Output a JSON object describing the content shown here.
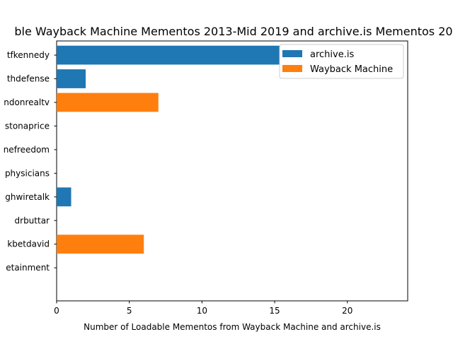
{
  "chart_data": {
    "type": "bar",
    "orientation": "horizontal",
    "title": "ble Wayback Machine Mementos 2013-Mid 2019 and archive.is Mementos 20",
    "xlabel": "Number of Loadable Mementos from Wayback Machine and archive.is",
    "ylabel": "",
    "xlim": [
      0,
      24.15
    ],
    "xticks": [
      0,
      5,
      10,
      15,
      20
    ],
    "categories": [
      "etainment",
      "kbetdavid",
      "drbuttar",
      "ghwiretalk",
      "physicians",
      "nefreedom",
      "stonaprice",
      "ndonrealtv",
      "thdefense",
      "tfkennedy"
    ],
    "series": [
      {
        "name": "archive.is",
        "color": "#1f77b4",
        "values": [
          0,
          0,
          0,
          1,
          0,
          0,
          0,
          0,
          2,
          23
        ]
      },
      {
        "name": "Wayback Machine",
        "color": "#ff7f0e",
        "values": [
          0,
          6,
          0,
          0,
          0,
          0,
          0,
          7,
          0,
          0
        ]
      }
    ],
    "legend": {
      "position": "top-right",
      "entries": [
        "archive.is",
        "Wayback Machine"
      ]
    },
    "grid": false
  }
}
